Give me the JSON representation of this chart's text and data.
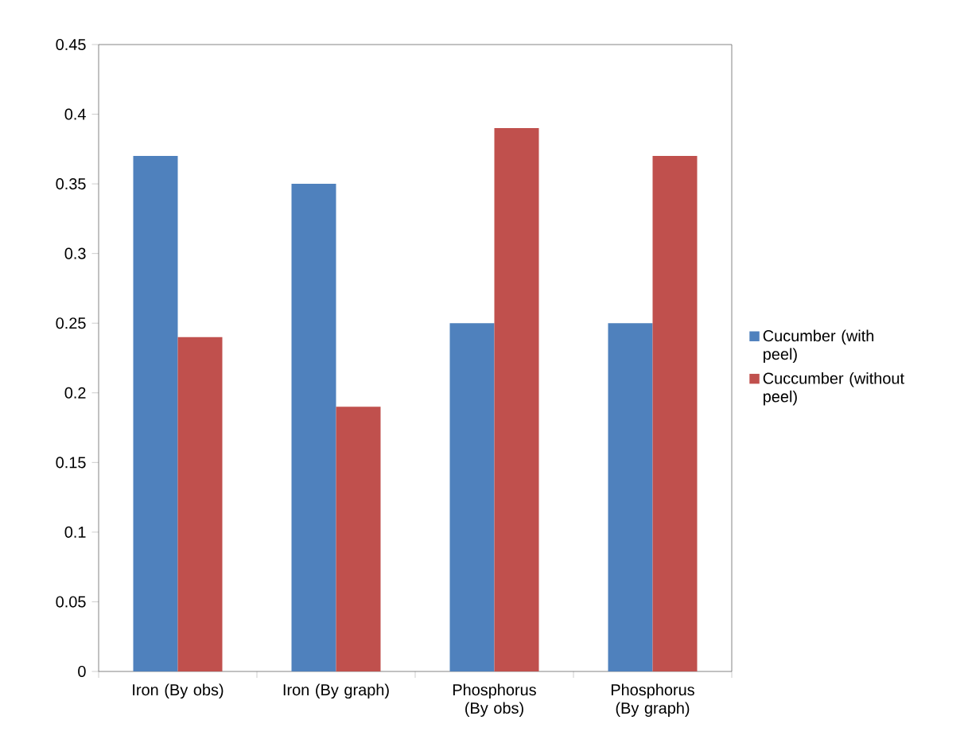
{
  "chart_data": {
    "type": "bar",
    "categories": [
      "Iron (By obs)",
      "Iron (By graph)",
      "Phosphorus (By obs)",
      "Phosphorus (By graph)"
    ],
    "series": [
      {
        "name": "Cucumber (with peel)",
        "color": "#4f81bd",
        "values": [
          0.37,
          0.35,
          0.25,
          0.25
        ]
      },
      {
        "name": "Cuccumber (without peel)",
        "color": "#c0504d",
        "values": [
          0.24,
          0.19,
          0.39,
          0.37
        ]
      }
    ],
    "ylim": [
      0,
      0.45
    ],
    "yticks": [
      0,
      0.05,
      0.1,
      0.15,
      0.2,
      0.25,
      0.3,
      0.35,
      0.4,
      0.45
    ],
    "legend": "right"
  }
}
